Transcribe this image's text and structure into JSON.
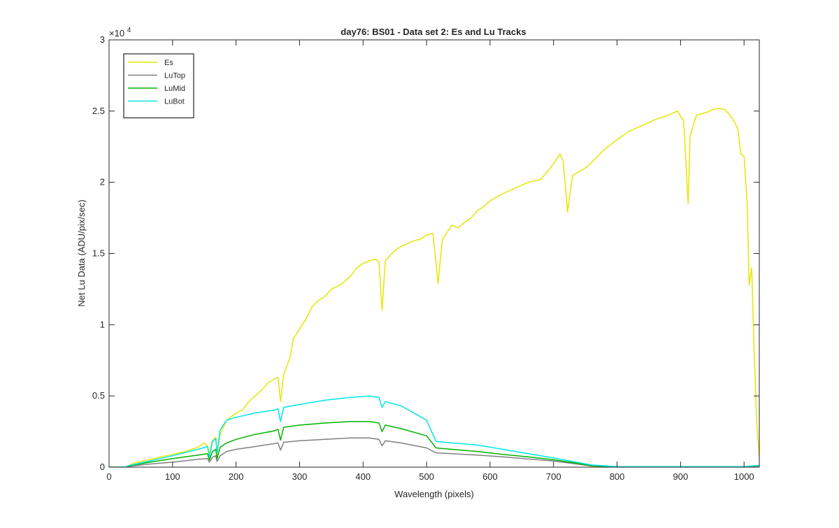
{
  "chart_data": {
    "type": "line",
    "title": "day76: BS01 - Data set 2: Es and Lu Tracks",
    "xlabel": "Wavelength (pixels)",
    "ylabel": "Net Lu Data (ADU/pix/sec)",
    "y_exponent_label": "×10",
    "y_exponent_power": "4",
    "xlim": [
      0,
      1024
    ],
    "ylim": [
      0,
      30000
    ],
    "x_ticks": [
      0,
      100,
      200,
      300,
      400,
      500,
      600,
      700,
      800,
      900,
      1000
    ],
    "x_tick_labels": [
      "0",
      "100",
      "200",
      "300",
      "400",
      "500",
      "600",
      "700",
      "800",
      "900",
      "1000"
    ],
    "y_ticks": [
      0,
      5000,
      10000,
      15000,
      20000,
      25000,
      30000
    ],
    "y_tick_labels": [
      "0",
      "0.5",
      "1",
      "1.5",
      "2",
      "2.5",
      "3"
    ],
    "grid": false,
    "legend_position": "top-left",
    "series": [
      {
        "name": "Es",
        "color": "#e6e600",
        "points": [
          [
            0,
            0
          ],
          [
            25,
            0
          ],
          [
            30,
            100
          ],
          [
            40,
            300
          ],
          [
            60,
            500
          ],
          [
            80,
            700
          ],
          [
            100,
            900
          ],
          [
            120,
            1100
          ],
          [
            140,
            1400
          ],
          [
            150,
            1700
          ],
          [
            155,
            1500
          ],
          [
            158,
            900
          ],
          [
            162,
            1800
          ],
          [
            168,
            2100
          ],
          [
            170,
            900
          ],
          [
            175,
            2300
          ],
          [
            185,
            3300
          ],
          [
            200,
            3800
          ],
          [
            210,
            4000
          ],
          [
            220,
            4600
          ],
          [
            230,
            5000
          ],
          [
            240,
            5400
          ],
          [
            250,
            5900
          ],
          [
            260,
            6200
          ],
          [
            266,
            6300
          ],
          [
            270,
            4600
          ],
          [
            275,
            6500
          ],
          [
            285,
            7700
          ],
          [
            290,
            9000
          ],
          [
            300,
            9700
          ],
          [
            310,
            10400
          ],
          [
            320,
            11300
          ],
          [
            330,
            11700
          ],
          [
            340,
            12000
          ],
          [
            350,
            12500
          ],
          [
            360,
            12700
          ],
          [
            370,
            13000
          ],
          [
            380,
            13400
          ],
          [
            390,
            14000
          ],
          [
            400,
            14300
          ],
          [
            410,
            14500
          ],
          [
            420,
            14600
          ],
          [
            425,
            14400
          ],
          [
            430,
            11000
          ],
          [
            435,
            14500
          ],
          [
            450,
            15200
          ],
          [
            460,
            15500
          ],
          [
            470,
            15700
          ],
          [
            480,
            15900
          ],
          [
            490,
            16000
          ],
          [
            500,
            16300
          ],
          [
            510,
            16400
          ],
          [
            515,
            14300
          ],
          [
            518,
            12900
          ],
          [
            525,
            16000
          ],
          [
            540,
            17000
          ],
          [
            550,
            16800
          ],
          [
            560,
            17200
          ],
          [
            570,
            17500
          ],
          [
            580,
            18000
          ],
          [
            590,
            18300
          ],
          [
            600,
            18700
          ],
          [
            620,
            19200
          ],
          [
            640,
            19600
          ],
          [
            660,
            20000
          ],
          [
            680,
            20200
          ],
          [
            700,
            21300
          ],
          [
            710,
            22000
          ],
          [
            715,
            21500
          ],
          [
            720,
            19000
          ],
          [
            722,
            17900
          ],
          [
            730,
            20500
          ],
          [
            750,
            21000
          ],
          [
            760,
            21400
          ],
          [
            780,
            22300
          ],
          [
            800,
            23000
          ],
          [
            820,
            23600
          ],
          [
            840,
            24000
          ],
          [
            860,
            24400
          ],
          [
            880,
            24700
          ],
          [
            895,
            25000
          ],
          [
            905,
            24300
          ],
          [
            910,
            20000
          ],
          [
            912,
            18500
          ],
          [
            915,
            23300
          ],
          [
            925,
            24700
          ],
          [
            940,
            24900
          ],
          [
            950,
            25100
          ],
          [
            960,
            25200
          ],
          [
            970,
            25100
          ],
          [
            980,
            24600
          ],
          [
            990,
            23800
          ],
          [
            995,
            22000
          ],
          [
            1000,
            21800
          ],
          [
            1005,
            18500
          ],
          [
            1008,
            12800
          ],
          [
            1012,
            14000
          ],
          [
            1016,
            8000
          ],
          [
            1020,
            3000
          ],
          [
            1024,
            700
          ]
        ]
      },
      {
        "name": "LuTop",
        "color": "#808080",
        "points": [
          [
            0,
            0
          ],
          [
            25,
            0
          ],
          [
            30,
            50
          ],
          [
            60,
            200
          ],
          [
            100,
            350
          ],
          [
            140,
            550
          ],
          [
            155,
            600
          ],
          [
            158,
            350
          ],
          [
            163,
            700
          ],
          [
            168,
            800
          ],
          [
            170,
            400
          ],
          [
            175,
            800
          ],
          [
            185,
            1100
          ],
          [
            200,
            1250
          ],
          [
            230,
            1450
          ],
          [
            260,
            1650
          ],
          [
            266,
            1700
          ],
          [
            270,
            1200
          ],
          [
            275,
            1750
          ],
          [
            300,
            1850
          ],
          [
            340,
            1950
          ],
          [
            380,
            2050
          ],
          [
            410,
            2050
          ],
          [
            425,
            1950
          ],
          [
            430,
            1500
          ],
          [
            435,
            1850
          ],
          [
            460,
            1700
          ],
          [
            500,
            1350
          ],
          [
            515,
            1000
          ],
          [
            540,
            950
          ],
          [
            580,
            850
          ],
          [
            620,
            720
          ],
          [
            660,
            580
          ],
          [
            700,
            430
          ],
          [
            730,
            260
          ],
          [
            760,
            80
          ],
          [
            800,
            20
          ],
          [
            1000,
            30
          ],
          [
            1024,
            80
          ]
        ]
      },
      {
        "name": "LuMid",
        "color": "#00b300",
        "points": [
          [
            0,
            0
          ],
          [
            25,
            0
          ],
          [
            30,
            80
          ],
          [
            60,
            320
          ],
          [
            100,
            600
          ],
          [
            140,
            850
          ],
          [
            155,
            950
          ],
          [
            158,
            500
          ],
          [
            163,
            1100
          ],
          [
            168,
            1250
          ],
          [
            170,
            600
          ],
          [
            175,
            1400
          ],
          [
            185,
            1700
          ],
          [
            200,
            1950
          ],
          [
            230,
            2300
          ],
          [
            260,
            2550
          ],
          [
            266,
            2650
          ],
          [
            270,
            1900
          ],
          [
            275,
            2800
          ],
          [
            300,
            2950
          ],
          [
            340,
            3100
          ],
          [
            380,
            3200
          ],
          [
            410,
            3200
          ],
          [
            425,
            3100
          ],
          [
            430,
            2500
          ],
          [
            435,
            2950
          ],
          [
            460,
            2700
          ],
          [
            500,
            2200
          ],
          [
            515,
            1350
          ],
          [
            540,
            1250
          ],
          [
            580,
            1100
          ],
          [
            620,
            900
          ],
          [
            660,
            720
          ],
          [
            700,
            520
          ],
          [
            730,
            320
          ],
          [
            760,
            110
          ],
          [
            800,
            30
          ],
          [
            1000,
            40
          ],
          [
            1024,
            120
          ]
        ]
      },
      {
        "name": "LuBot",
        "color": "#00e6e6",
        "points": [
          [
            0,
            0
          ],
          [
            25,
            0
          ],
          [
            30,
            100
          ],
          [
            60,
            400
          ],
          [
            100,
            800
          ],
          [
            140,
            1250
          ],
          [
            155,
            1450
          ],
          [
            158,
            700
          ],
          [
            163,
            1800
          ],
          [
            168,
            2000
          ],
          [
            170,
            1000
          ],
          [
            175,
            2600
          ],
          [
            185,
            3300
          ],
          [
            200,
            3500
          ],
          [
            230,
            3800
          ],
          [
            260,
            4000
          ],
          [
            266,
            4100
          ],
          [
            270,
            3200
          ],
          [
            275,
            4200
          ],
          [
            300,
            4400
          ],
          [
            340,
            4700
          ],
          [
            380,
            4900
          ],
          [
            410,
            5000
          ],
          [
            425,
            4900
          ],
          [
            430,
            4200
          ],
          [
            435,
            4600
          ],
          [
            460,
            4300
          ],
          [
            500,
            3300
          ],
          [
            515,
            1800
          ],
          [
            540,
            1700
          ],
          [
            580,
            1550
          ],
          [
            620,
            1250
          ],
          [
            660,
            950
          ],
          [
            700,
            650
          ],
          [
            730,
            400
          ],
          [
            760,
            150
          ],
          [
            800,
            40
          ],
          [
            1000,
            40
          ],
          [
            1024,
            130
          ]
        ]
      }
    ]
  }
}
